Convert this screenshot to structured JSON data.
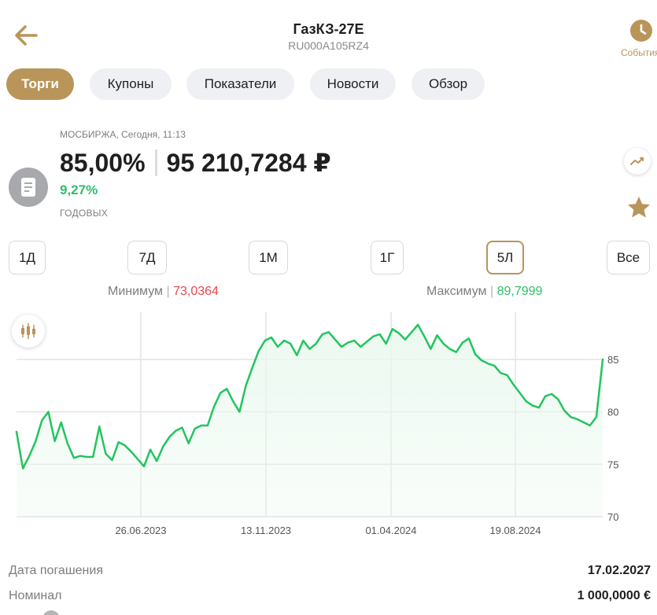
{
  "header": {
    "title": "ГазКЗ-27Е",
    "isin": "RU000A105RZ4",
    "events_label": "События",
    "accent_color": "#b9955a"
  },
  "tabs": [
    {
      "label": "Торги",
      "active": true
    },
    {
      "label": "Купоны",
      "active": false
    },
    {
      "label": "Показатели",
      "active": false
    },
    {
      "label": "Новости",
      "active": false
    },
    {
      "label": "Обзор",
      "active": false
    }
  ],
  "quote": {
    "exchange": "МОСБИРЖА, Сегодня, 11:13",
    "price_percent": "85,00%",
    "price_value": "95 210,7284 ₽",
    "yield": "9,27%",
    "yield_label": "ГОДОВЫХ",
    "icon": "document-icon"
  },
  "periods": [
    {
      "label": "1Д",
      "active": false
    },
    {
      "label": "7Д",
      "active": false
    },
    {
      "label": "1М",
      "active": false
    },
    {
      "label": "1Г",
      "active": false
    },
    {
      "label": "5Л",
      "active": true
    },
    {
      "label": "Все",
      "active": false
    }
  ],
  "stats": {
    "min_label": "Минимум",
    "min_value": "73,0364",
    "max_label": "Максимум",
    "max_value": "89,7999"
  },
  "chart_data": {
    "type": "area",
    "x_tick_labels": [
      "26.06.2023",
      "13.11.2023",
      "01.04.2024",
      "19.08.2024"
    ],
    "y_tick_labels": [
      "85",
      "80",
      "75",
      "70"
    ],
    "yticks": [
      85,
      80,
      75,
      70
    ],
    "ylim": [
      70,
      89.5
    ],
    "grid": true,
    "y_axis_position": "right",
    "line_color": "#22c55e",
    "fill_color": "#e9f8ee",
    "series": [
      {
        "values": [
          78.1,
          74.6,
          75.8,
          77.2,
          79.2,
          80.0,
          77.2,
          79.0,
          77.0,
          75.6,
          75.8,
          75.7,
          75.7,
          78.6,
          76.0,
          75.4,
          77.1,
          76.8,
          76.2,
          75.5,
          74.8,
          76.4,
          75.3,
          76.7,
          77.6,
          78.2,
          78.5,
          77.0,
          78.4,
          78.7,
          78.7,
          80.5,
          81.8,
          82.2,
          81.0,
          80.0,
          82.5,
          84.2,
          85.8,
          86.8,
          87.1,
          86.2,
          86.8,
          86.5,
          85.4,
          86.8,
          86.0,
          86.5,
          87.4,
          87.6,
          86.9,
          86.2,
          86.6,
          86.8,
          86.2,
          86.7,
          87.2,
          87.4,
          86.5,
          87.9,
          87.5,
          86.9,
          87.6,
          88.3,
          87.2,
          86.0,
          87.3,
          86.5,
          86.0,
          85.7,
          86.6,
          87.0,
          85.5,
          84.9,
          84.6,
          84.4,
          83.7,
          83.5,
          82.6,
          81.8,
          81.0,
          80.6,
          80.4,
          81.5,
          81.7,
          81.2,
          80.1,
          79.5,
          79.3,
          79.0,
          78.7,
          79.5,
          85.0
        ]
      }
    ]
  },
  "details": [
    {
      "label": "Дата погашения",
      "value": "17.02.2027"
    },
    {
      "label": "Номинал",
      "value": "1 000,0000 €"
    }
  ]
}
